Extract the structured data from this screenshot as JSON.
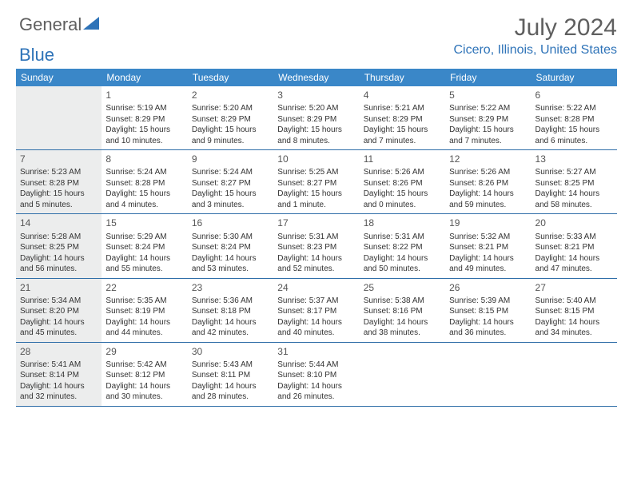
{
  "logo": {
    "word1": "General",
    "word2": "Blue"
  },
  "header": {
    "title": "July 2024",
    "location": "Cicero, Illinois, United States"
  },
  "colors": {
    "header_bg": "#3a87c8",
    "header_text": "#ffffff",
    "accent": "#2e73b8",
    "cell_border": "#2f6ea8",
    "first_col_bg": "#eceded",
    "title_color": "#5f5f5f",
    "body_text": "#333333"
  },
  "day_names": [
    "Sunday",
    "Monday",
    "Tuesday",
    "Wednesday",
    "Thursday",
    "Friday",
    "Saturday"
  ],
  "weeks": [
    [
      {
        "date": "",
        "sunrise": "",
        "sunset": "",
        "day1": "",
        "day2": ""
      },
      {
        "date": "1",
        "sunrise": "Sunrise: 5:19 AM",
        "sunset": "Sunset: 8:29 PM",
        "day1": "Daylight: 15 hours",
        "day2": "and 10 minutes."
      },
      {
        "date": "2",
        "sunrise": "Sunrise: 5:20 AM",
        "sunset": "Sunset: 8:29 PM",
        "day1": "Daylight: 15 hours",
        "day2": "and 9 minutes."
      },
      {
        "date": "3",
        "sunrise": "Sunrise: 5:20 AM",
        "sunset": "Sunset: 8:29 PM",
        "day1": "Daylight: 15 hours",
        "day2": "and 8 minutes."
      },
      {
        "date": "4",
        "sunrise": "Sunrise: 5:21 AM",
        "sunset": "Sunset: 8:29 PM",
        "day1": "Daylight: 15 hours",
        "day2": "and 7 minutes."
      },
      {
        "date": "5",
        "sunrise": "Sunrise: 5:22 AM",
        "sunset": "Sunset: 8:29 PM",
        "day1": "Daylight: 15 hours",
        "day2": "and 7 minutes."
      },
      {
        "date": "6",
        "sunrise": "Sunrise: 5:22 AM",
        "sunset": "Sunset: 8:28 PM",
        "day1": "Daylight: 15 hours",
        "day2": "and 6 minutes."
      }
    ],
    [
      {
        "date": "7",
        "sunrise": "Sunrise: 5:23 AM",
        "sunset": "Sunset: 8:28 PM",
        "day1": "Daylight: 15 hours",
        "day2": "and 5 minutes."
      },
      {
        "date": "8",
        "sunrise": "Sunrise: 5:24 AM",
        "sunset": "Sunset: 8:28 PM",
        "day1": "Daylight: 15 hours",
        "day2": "and 4 minutes."
      },
      {
        "date": "9",
        "sunrise": "Sunrise: 5:24 AM",
        "sunset": "Sunset: 8:27 PM",
        "day1": "Daylight: 15 hours",
        "day2": "and 3 minutes."
      },
      {
        "date": "10",
        "sunrise": "Sunrise: 5:25 AM",
        "sunset": "Sunset: 8:27 PM",
        "day1": "Daylight: 15 hours",
        "day2": "and 1 minute."
      },
      {
        "date": "11",
        "sunrise": "Sunrise: 5:26 AM",
        "sunset": "Sunset: 8:26 PM",
        "day1": "Daylight: 15 hours",
        "day2": "and 0 minutes."
      },
      {
        "date": "12",
        "sunrise": "Sunrise: 5:26 AM",
        "sunset": "Sunset: 8:26 PM",
        "day1": "Daylight: 14 hours",
        "day2": "and 59 minutes."
      },
      {
        "date": "13",
        "sunrise": "Sunrise: 5:27 AM",
        "sunset": "Sunset: 8:25 PM",
        "day1": "Daylight: 14 hours",
        "day2": "and 58 minutes."
      }
    ],
    [
      {
        "date": "14",
        "sunrise": "Sunrise: 5:28 AM",
        "sunset": "Sunset: 8:25 PM",
        "day1": "Daylight: 14 hours",
        "day2": "and 56 minutes."
      },
      {
        "date": "15",
        "sunrise": "Sunrise: 5:29 AM",
        "sunset": "Sunset: 8:24 PM",
        "day1": "Daylight: 14 hours",
        "day2": "and 55 minutes."
      },
      {
        "date": "16",
        "sunrise": "Sunrise: 5:30 AM",
        "sunset": "Sunset: 8:24 PM",
        "day1": "Daylight: 14 hours",
        "day2": "and 53 minutes."
      },
      {
        "date": "17",
        "sunrise": "Sunrise: 5:31 AM",
        "sunset": "Sunset: 8:23 PM",
        "day1": "Daylight: 14 hours",
        "day2": "and 52 minutes."
      },
      {
        "date": "18",
        "sunrise": "Sunrise: 5:31 AM",
        "sunset": "Sunset: 8:22 PM",
        "day1": "Daylight: 14 hours",
        "day2": "and 50 minutes."
      },
      {
        "date": "19",
        "sunrise": "Sunrise: 5:32 AM",
        "sunset": "Sunset: 8:21 PM",
        "day1": "Daylight: 14 hours",
        "day2": "and 49 minutes."
      },
      {
        "date": "20",
        "sunrise": "Sunrise: 5:33 AM",
        "sunset": "Sunset: 8:21 PM",
        "day1": "Daylight: 14 hours",
        "day2": "and 47 minutes."
      }
    ],
    [
      {
        "date": "21",
        "sunrise": "Sunrise: 5:34 AM",
        "sunset": "Sunset: 8:20 PM",
        "day1": "Daylight: 14 hours",
        "day2": "and 45 minutes."
      },
      {
        "date": "22",
        "sunrise": "Sunrise: 5:35 AM",
        "sunset": "Sunset: 8:19 PM",
        "day1": "Daylight: 14 hours",
        "day2": "and 44 minutes."
      },
      {
        "date": "23",
        "sunrise": "Sunrise: 5:36 AM",
        "sunset": "Sunset: 8:18 PM",
        "day1": "Daylight: 14 hours",
        "day2": "and 42 minutes."
      },
      {
        "date": "24",
        "sunrise": "Sunrise: 5:37 AM",
        "sunset": "Sunset: 8:17 PM",
        "day1": "Daylight: 14 hours",
        "day2": "and 40 minutes."
      },
      {
        "date": "25",
        "sunrise": "Sunrise: 5:38 AM",
        "sunset": "Sunset: 8:16 PM",
        "day1": "Daylight: 14 hours",
        "day2": "and 38 minutes."
      },
      {
        "date": "26",
        "sunrise": "Sunrise: 5:39 AM",
        "sunset": "Sunset: 8:15 PM",
        "day1": "Daylight: 14 hours",
        "day2": "and 36 minutes."
      },
      {
        "date": "27",
        "sunrise": "Sunrise: 5:40 AM",
        "sunset": "Sunset: 8:15 PM",
        "day1": "Daylight: 14 hours",
        "day2": "and 34 minutes."
      }
    ],
    [
      {
        "date": "28",
        "sunrise": "Sunrise: 5:41 AM",
        "sunset": "Sunset: 8:14 PM",
        "day1": "Daylight: 14 hours",
        "day2": "and 32 minutes."
      },
      {
        "date": "29",
        "sunrise": "Sunrise: 5:42 AM",
        "sunset": "Sunset: 8:12 PM",
        "day1": "Daylight: 14 hours",
        "day2": "and 30 minutes."
      },
      {
        "date": "30",
        "sunrise": "Sunrise: 5:43 AM",
        "sunset": "Sunset: 8:11 PM",
        "day1": "Daylight: 14 hours",
        "day2": "and 28 minutes."
      },
      {
        "date": "31",
        "sunrise": "Sunrise: 5:44 AM",
        "sunset": "Sunset: 8:10 PM",
        "day1": "Daylight: 14 hours",
        "day2": "and 26 minutes."
      },
      {
        "date": "",
        "sunrise": "",
        "sunset": "",
        "day1": "",
        "day2": ""
      },
      {
        "date": "",
        "sunrise": "",
        "sunset": "",
        "day1": "",
        "day2": ""
      },
      {
        "date": "",
        "sunrise": "",
        "sunset": "",
        "day1": "",
        "day2": ""
      }
    ]
  ]
}
